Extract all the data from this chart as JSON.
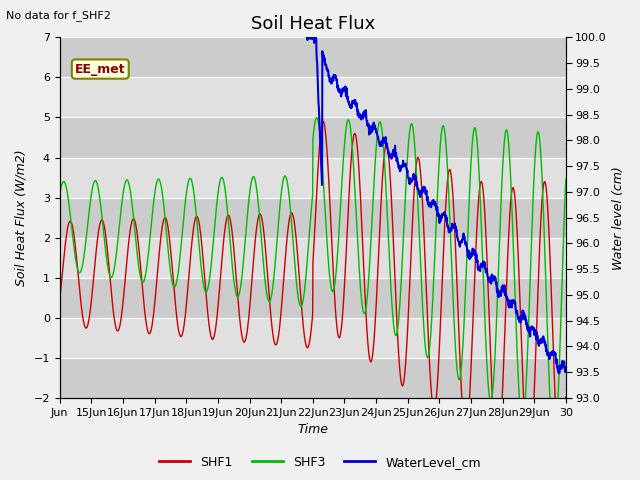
{
  "title": "Soil Heat Flux",
  "subtitle": "No data for f_SHF2",
  "xlabel": "Time",
  "ylabel_left": "Soil Heat Flux (W/m2)",
  "ylabel_right": "Water level (cm)",
  "ylim_left": [
    -2.0,
    7.0
  ],
  "ylim_right": [
    93.0,
    100.0
  ],
  "yticks_left": [
    -2.0,
    -1.0,
    0.0,
    1.0,
    2.0,
    3.0,
    4.0,
    5.0,
    6.0,
    7.0
  ],
  "yticks_right": [
    93.0,
    93.5,
    94.0,
    94.5,
    95.0,
    95.5,
    96.0,
    96.5,
    97.0,
    97.5,
    98.0,
    98.5,
    99.0,
    99.5,
    100.0
  ],
  "xlim": [
    14,
    30
  ],
  "xtick_positions": [
    14,
    15,
    16,
    17,
    18,
    19,
    20,
    21,
    22,
    23,
    24,
    25,
    26,
    27,
    28,
    29,
    30
  ],
  "xtick_labels": [
    "Jun",
    "15Jun",
    "16Jun",
    "17Jun",
    "18Jun",
    "19Jun",
    "20Jun",
    "21Jun",
    "22Jun",
    "23Jun",
    "24Jun",
    "25Jun",
    "26Jun",
    "27Jun",
    "28Jun",
    "29Jun",
    "30"
  ],
  "color_shf1": "#cc0000",
  "color_shf3": "#00bb00",
  "color_water": "#0000dd",
  "bg_plot": "#e0e0e0",
  "legend_label1": "SHF1",
  "legend_label2": "SHF3",
  "legend_label3": "WaterLevel_cm",
  "ee_met_label": "EE_met",
  "title_fontsize": 13,
  "label_fontsize": 9,
  "tick_fontsize": 8,
  "fig_width": 6.4,
  "fig_height": 4.8
}
